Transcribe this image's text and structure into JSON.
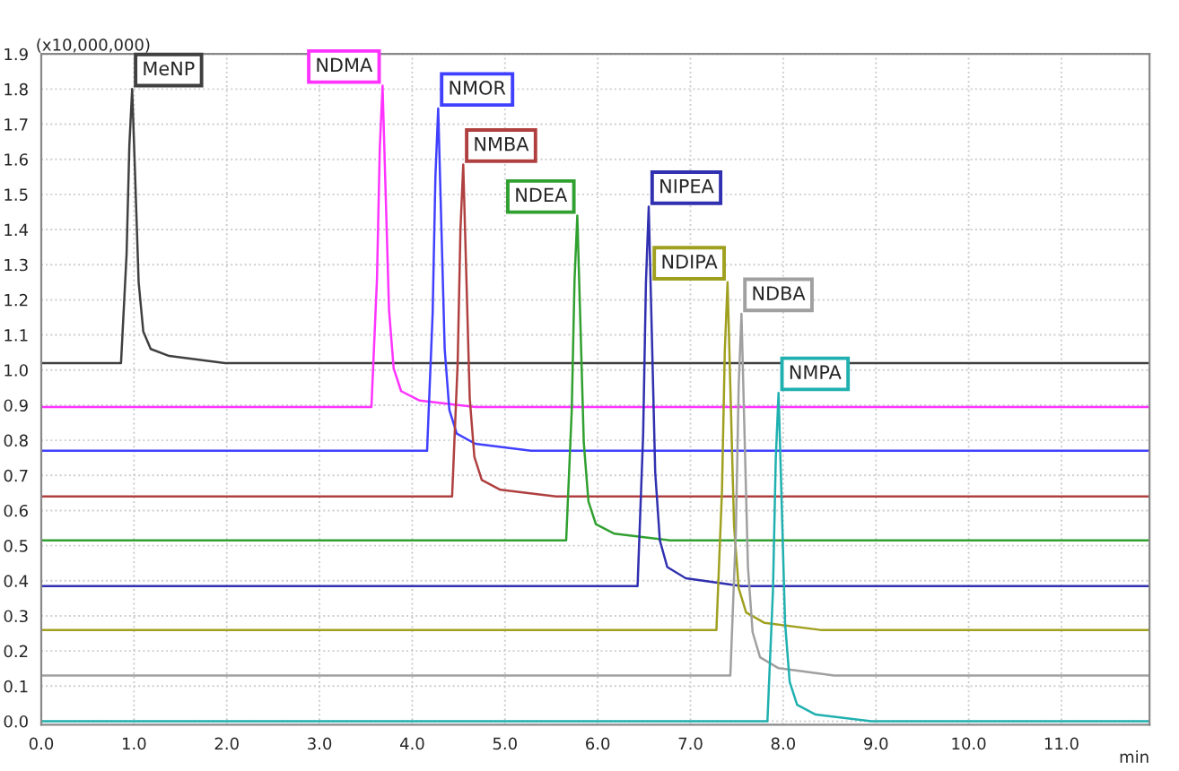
{
  "chart_data": {
    "type": "line",
    "ylabel": "(x10,000,000)",
    "xlabel": "min",
    "xlim": [
      0,
      11.95
    ],
    "ylim": [
      -0.01,
      1.9
    ],
    "xticks": [
      {
        "value": 0,
        "label": "0.0"
      },
      {
        "value": 1,
        "label": "1.0"
      },
      {
        "value": 2,
        "label": "2.0"
      },
      {
        "value": 3,
        "label": "3.0"
      },
      {
        "value": 4,
        "label": "4.0"
      },
      {
        "value": 5,
        "label": "5.0"
      },
      {
        "value": 6,
        "label": "6.0"
      },
      {
        "value": 7,
        "label": "7.0"
      },
      {
        "value": 8,
        "label": "8.0"
      },
      {
        "value": 9,
        "label": "9.0"
      },
      {
        "value": 10,
        "label": "10.0"
      },
      {
        "value": 11,
        "label": "11.0"
      }
    ],
    "yticks": [
      {
        "value": 0,
        "label": "0.0"
      },
      0.1,
      0.2,
      0.3,
      0.4,
      0.5,
      0.6,
      0.7,
      0.8,
      0.9,
      {
        "value": 1,
        "label": "1.0"
      },
      1.1,
      1.2,
      1.3,
      1.4,
      1.5,
      1.6,
      1.7,
      1.8,
      1.9
    ],
    "grid": true,
    "line_style": "solid",
    "series": [
      {
        "name": "MeNP",
        "color": "#404040",
        "x": [
          0,
          0.86,
          0.92,
          0.95,
          0.98,
          1.01,
          1.05,
          1.1,
          1.18,
          1.38,
          1.98,
          11.95
        ],
        "values": [
          1.02,
          1.02,
          1.33,
          1.64,
          1.8,
          1.57,
          1.25,
          1.11,
          1.06,
          1.04,
          1.02,
          1.02
        ]
      },
      {
        "name": "NDMA",
        "color": "#ff33ff",
        "x": [
          0,
          3.56,
          3.62,
          3.65,
          3.68,
          3.71,
          3.75,
          3.8,
          3.88,
          4.08,
          4.68,
          11.95
        ],
        "values": [
          0.895,
          0.895,
          1.26,
          1.63,
          1.81,
          1.535,
          1.17,
          1.005,
          0.94,
          0.913,
          0.895,
          0.895
        ]
      },
      {
        "name": "NMOR",
        "color": "#4040ff",
        "x": [
          0,
          4.16,
          4.22,
          4.25,
          4.28,
          4.31,
          4.35,
          4.4,
          4.48,
          4.68,
          5.28,
          11.95
        ],
        "values": [
          0.77,
          0.77,
          1.16,
          1.55,
          1.745,
          1.45,
          1.06,
          0.887,
          0.819,
          0.79,
          0.77,
          0.77
        ]
      },
      {
        "name": "NMBA",
        "color": "#b04040",
        "x": [
          0,
          4.43,
          4.49,
          4.52,
          4.55,
          4.58,
          4.62,
          4.67,
          4.75,
          4.95,
          5.55,
          11.95
        ],
        "values": [
          0.64,
          0.64,
          1.02,
          1.4,
          1.585,
          1.3,
          0.92,
          0.753,
          0.687,
          0.659,
          0.64,
          0.64
        ]
      },
      {
        "name": "NDEA",
        "color": "#30a030",
        "x": [
          0,
          5.66,
          5.72,
          5.75,
          5.78,
          5.81,
          5.85,
          5.9,
          5.98,
          6.18,
          6.78,
          11.95
        ],
        "values": [
          0.515,
          0.515,
          0.885,
          1.255,
          1.44,
          1.163,
          0.793,
          0.626,
          0.561,
          0.534,
          0.515,
          0.515
        ]
      },
      {
        "name": "NIPEA",
        "color": "#3030b0",
        "x": [
          0,
          6.43,
          6.49,
          6.52,
          6.55,
          6.58,
          6.62,
          6.67,
          6.75,
          6.95,
          7.55,
          11.95
        ],
        "values": [
          0.385,
          0.385,
          0.817,
          1.249,
          1.465,
          1.141,
          0.709,
          0.515,
          0.439,
          0.407,
          0.385,
          0.385
        ]
      },
      {
        "name": "NDIPA",
        "color": "#a0a020",
        "x": [
          0,
          7.28,
          7.34,
          7.37,
          7.4,
          7.43,
          7.47,
          7.52,
          7.6,
          7.8,
          8.4,
          11.95
        ],
        "values": [
          0.26,
          0.26,
          0.656,
          1.052,
          1.25,
          0.953,
          0.557,
          0.379,
          0.31,
          0.28,
          0.26,
          0.26
        ]
      },
      {
        "name": "NDBA",
        "color": "#a0a0a0",
        "x": [
          0,
          7.43,
          7.49,
          7.52,
          7.55,
          7.58,
          7.62,
          7.67,
          7.75,
          7.95,
          8.55,
          11.95
        ],
        "values": [
          0.13,
          0.13,
          0.542,
          0.954,
          1.16,
          0.851,
          0.439,
          0.254,
          0.182,
          0.151,
          0.13,
          0.13
        ]
      },
      {
        "name": "NMPA",
        "color": "#20b0b0",
        "x": [
          0,
          7.83,
          7.89,
          7.92,
          7.95,
          7.98,
          8.02,
          8.07,
          8.15,
          8.35,
          8.95,
          11.95
        ],
        "values": [
          0,
          0,
          0.374,
          0.748,
          0.935,
          0.655,
          0.281,
          0.112,
          0.047,
          0.019,
          0,
          0
        ]
      }
    ]
  }
}
